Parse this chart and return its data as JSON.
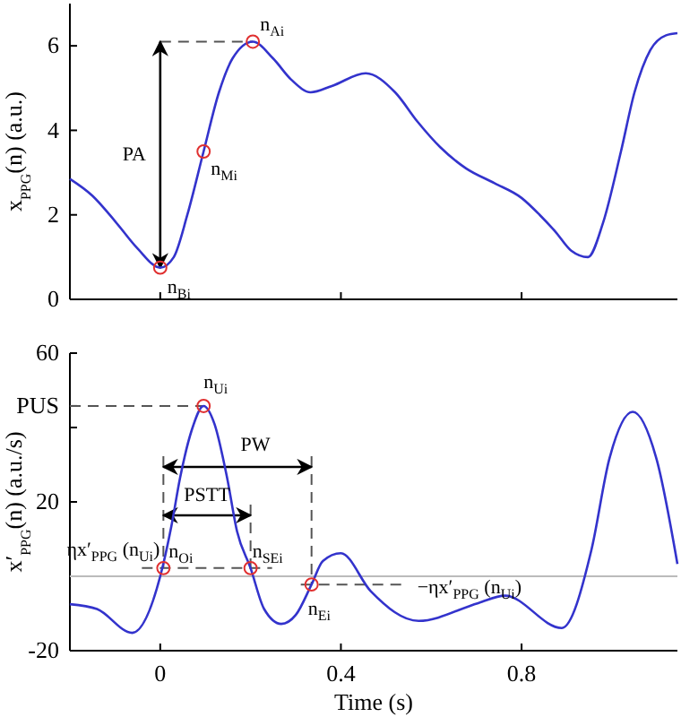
{
  "chart_data": [
    {
      "type": "line",
      "ylabel": "x$_{PPG}$(n)   (a.u.)",
      "xlim": [
        -0.2,
        1.145
      ],
      "xticks": [
        {
          "value": 0,
          "label": null
        },
        {
          "value": 0.4,
          "label": null
        },
        {
          "value": 0.8,
          "label": null
        }
      ],
      "ylim": [
        0,
        7
      ],
      "yticks": [
        0,
        2,
        4,
        6
      ],
      "tick_labels": "y",
      "series": [
        {
          "color": "#3333cc",
          "x": [
            -0.2,
            -0.15,
            -0.1,
            -0.05,
            0,
            0.03,
            0.06,
            0.096,
            0.13,
            0.16,
            0.205,
            0.25,
            0.29,
            0.333,
            0.38,
            0.455,
            0.52,
            0.57,
            0.62,
            0.677,
            0.74,
            0.8,
            0.84,
            0.875,
            0.91,
            0.947,
            0.98,
            1.02,
            1.05,
            1.085,
            1.12,
            1.145
          ],
          "values": [
            2.85,
            2.45,
            1.85,
            1.2,
            0.75,
            1.0,
            2.0,
            3.5,
            4.9,
            5.7,
            6.1,
            5.7,
            5.2,
            4.9,
            5.05,
            5.35,
            4.9,
            4.2,
            3.6,
            3.1,
            2.75,
            2.4,
            2.0,
            1.6,
            1.15,
            1.0,
            1.8,
            3.5,
            4.9,
            5.9,
            6.25,
            6.3
          ]
        },
        {
          "type": "scatter",
          "color": "#e03030",
          "marker": "circle",
          "x": [
            0,
            0.096,
            0.205
          ],
          "values": [
            0.75,
            3.5,
            6.1
          ]
        }
      ],
      "annotations": [
        "PA",
        "n$_{Ai}$",
        "n$_{Mi}$",
        "n$_{Bi}$"
      ]
    },
    {
      "type": "line",
      "xlabel": "Time (s)",
      "ylabel": "x′$_{PPG}$(n)   (a.u./s)",
      "xlim": [
        -0.2,
        1.145
      ],
      "xticks": [
        0,
        0.4,
        0.8
      ],
      "ylim": [
        -20,
        60
      ],
      "yticks": [
        -20,
        20,
        {
          "value": 40,
          "label": null
        },
        {
          "value": 45.8,
          "label": "PUS"
        },
        60
      ],
      "ref_lines": [
        {
          "axis": "y",
          "value": 0,
          "color": "#bbbbbb"
        }
      ],
      "series": [
        {
          "color": "#3333cc",
          "x": [
            -0.2,
            -0.14,
            -0.062,
            0,
            0.025,
            0.044,
            0.07,
            0.096,
            0.12,
            0.148,
            0.17,
            0.2,
            0.23,
            0.268,
            0.3,
            0.335,
            0.36,
            0.4,
            0.466,
            0.572,
            0.704,
            0.763,
            0.889,
            0.955,
            0.994,
            1.046,
            1.099,
            1.145
          ],
          "values": [
            -7.5,
            -8.8,
            -15.2,
            0,
            13.7,
            26.5,
            39.4,
            45.8,
            41,
            26.5,
            12.1,
            2.2,
            -8.8,
            -12.8,
            -10.4,
            -2.2,
            4.1,
            6.2,
            -4,
            -12,
            -7.2,
            -5.2,
            -13.9,
            7.3,
            31.4,
            44.2,
            31.4,
            3.3
          ]
        },
        {
          "type": "scatter",
          "color": "#e03030",
          "marker": "circle",
          "x": [
            0.096,
            0.007,
            0.2,
            0.335
          ],
          "values": [
            45.8,
            2.2,
            2.2,
            -2.2
          ]
        }
      ],
      "annotations": [
        "n$_{Ui}$",
        "PW",
        {
          "text": "PSTT",
          "x": 0.2,
          "y": 2.2
        },
        "ηx′$_{PPG}$ (n$_{Ui}$)",
        "n$_{Oi}$",
        "n$_{SEi}$",
        "n$_{Ei}$",
        {
          "text": "−ηx′$_{PPG}$ (n$_{Ui}$)",
          "x": 0.335,
          "y": -2.2
        }
      ]
    }
  ]
}
